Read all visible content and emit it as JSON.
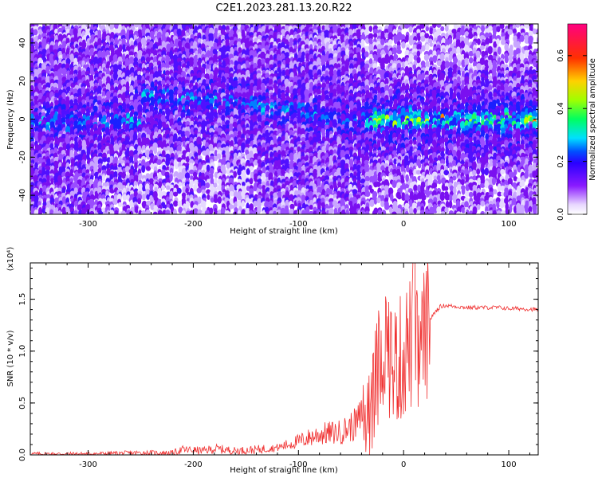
{
  "title": "C2E1.2023.281.13.20.R22",
  "colors": {
    "accent": "#f03030",
    "axis": "#000000"
  },
  "chart_data": [
    {
      "type": "heatmap",
      "title": "",
      "xlabel": "Height of straight line (km)",
      "ylabel": "Frequency (Hz)",
      "xlim": [
        -355,
        128
      ],
      "ylim": [
        -50,
        50
      ],
      "x_ticks": [
        -300,
        -200,
        -100,
        0,
        100
      ],
      "x_tick_labels": [
        "-300",
        "-200",
        "-100",
        "0",
        "100"
      ],
      "y_ticks": [
        -40,
        -20,
        0,
        20,
        40
      ],
      "y_tick_labels": [
        "-40",
        "-20",
        "0",
        "20",
        "40"
      ],
      "colorbar": {
        "label": "Normalized spectral amplitude",
        "range": [
          0,
          0.72
        ],
        "ticks": [
          0.0,
          0.2,
          0.4,
          0.6
        ],
        "tick_labels": [
          "0.0",
          "0.2",
          "0.4",
          "0.6"
        ],
        "colormap": "rainbow (white-violet-blue-cyan-green-yellow-red-magenta)"
      },
      "ridge": {
        "description": "bright narrow band of high amplitude",
        "x": [
          -250,
          -200,
          -160,
          -120,
          -80,
          -50,
          -30,
          0,
          50,
          128
        ],
        "y": [
          12,
          10,
          9,
          6,
          2,
          -1,
          0,
          0,
          0,
          0
        ]
      }
    },
    {
      "type": "line",
      "title": "",
      "xlabel": "Height of straight line (km)",
      "ylabel": "SNR (10 * v/v)",
      "y_multiplier": "(x10⁴)",
      "xlim": [
        -355,
        128
      ],
      "ylim": [
        0,
        1.85
      ],
      "x_ticks": [
        -300,
        -200,
        -100,
        0,
        100
      ],
      "x_tick_labels": [
        "-300",
        "-200",
        "-100",
        "0",
        "100"
      ],
      "y_ticks": [
        0.0,
        0.5,
        1.0,
        1.5
      ],
      "y_tick_labels": [
        "0.0",
        "0.5",
        "1.0",
        "1.5"
      ],
      "series": [
        {
          "color": "#f03030",
          "x": [
            -355,
            -300,
            -250,
            -220,
            -210,
            -190,
            -180,
            -160,
            -140,
            -120,
            -100,
            -80,
            -60,
            -45,
            -35,
            -25,
            -20,
            -15,
            -10,
            -5,
            0,
            5,
            10,
            15,
            20,
            25,
            30,
            35,
            40,
            50,
            60,
            70,
            80,
            90,
            100,
            110,
            128
          ],
          "y": [
            0.01,
            0.01,
            0.02,
            0.02,
            0.05,
            0.04,
            0.06,
            0.04,
            0.05,
            0.07,
            0.13,
            0.2,
            0.22,
            0.3,
            0.45,
            0.75,
            1.1,
            1.05,
            0.85,
            0.9,
            0.95,
            1.1,
            1.0,
            0.95,
            1.15,
            1.3,
            1.38,
            1.43,
            1.44,
            1.43,
            1.42,
            1.42,
            1.42,
            1.42,
            1.41,
            1.41,
            1.4
          ]
        }
      ]
    }
  ]
}
